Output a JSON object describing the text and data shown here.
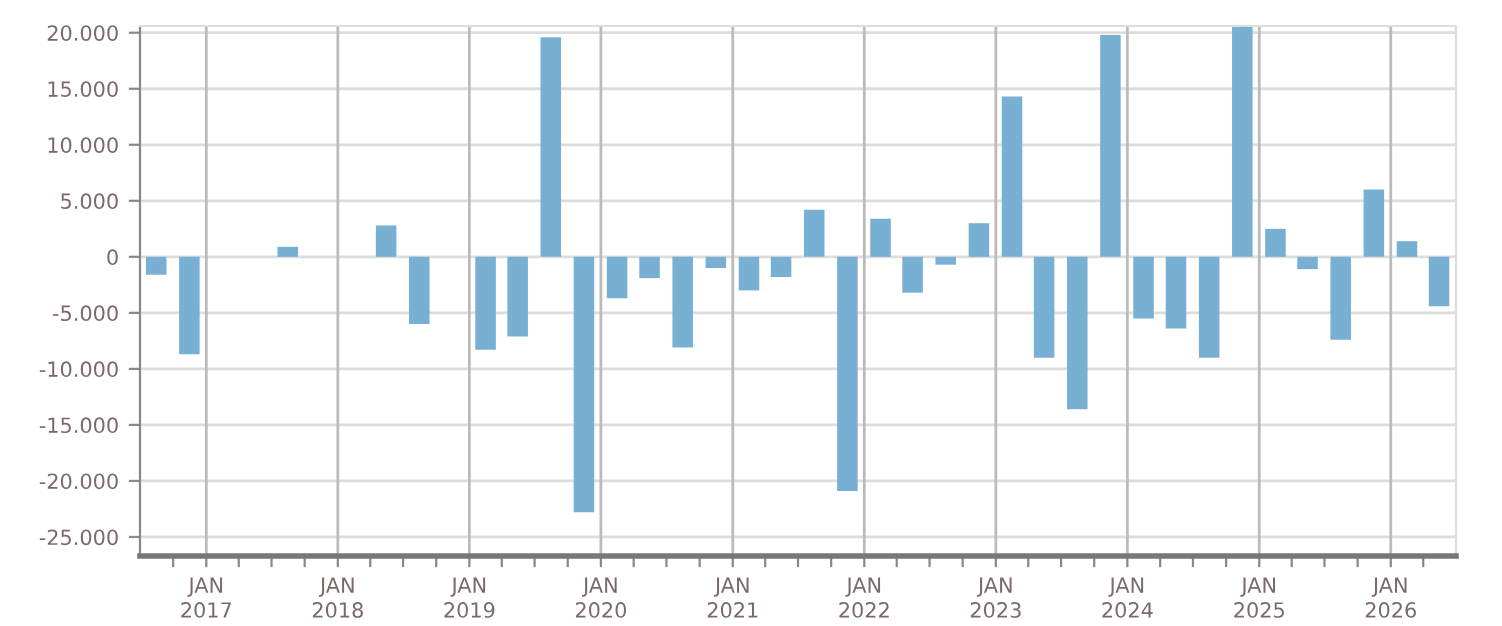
{
  "chart_data": {
    "type": "bar",
    "color": "#78b0d3",
    "x": [
      "2016-08-15",
      "2016-11-15",
      "2017-08-15",
      "2018-05-15",
      "2018-08-15",
      "2019-02-15",
      "2019-05-15",
      "2019-08-15",
      "2019-11-15",
      "2020-02-15",
      "2020-05-15",
      "2020-08-15",
      "2020-11-15",
      "2021-02-15",
      "2021-05-15",
      "2021-08-15",
      "2021-11-15",
      "2022-02-15",
      "2022-05-15",
      "2022-08-15",
      "2022-11-15",
      "2023-02-15",
      "2023-05-15",
      "2023-08-15",
      "2023-11-15",
      "2024-02-15",
      "2024-05-15",
      "2024-08-15",
      "2024-11-15",
      "2025-02-15",
      "2025-05-15",
      "2025-08-15",
      "2025-11-15",
      "2026-02-15",
      "2026-05-15"
    ],
    "values": [
      -1600,
      -8700,
      900,
      2800,
      -6000,
      -8300,
      -7100,
      19600,
      -22800,
      -3700,
      -1900,
      -8100,
      -1000,
      -3000,
      -1800,
      4200,
      -20900,
      3400,
      -3200,
      -700,
      3000,
      14300,
      -9000,
      -13600,
      19800,
      -5500,
      -6400,
      -9000,
      20500,
      2500,
      -1100,
      -7400,
      6000,
      1400,
      -4400
    ],
    "xlim": [
      "2016-07-01",
      "2026-07-01"
    ],
    "xticks": [
      {
        "value": "2016-10-01",
        "label": null
      },
      {
        "value": "2017-01-01",
        "label": "JAN\n2017"
      },
      {
        "value": "2017-04-01",
        "label": null
      },
      {
        "value": "2017-07-01",
        "label": null
      },
      {
        "value": "2017-10-01",
        "label": null
      },
      {
        "value": "2018-01-01",
        "label": "JAN\n2018"
      },
      {
        "value": "2018-04-01",
        "label": null
      },
      {
        "value": "2018-07-01",
        "label": null
      },
      {
        "value": "2018-10-01",
        "label": null
      },
      {
        "value": "2019-01-01",
        "label": "JAN\n2019"
      },
      {
        "value": "2019-04-01",
        "label": null
      },
      {
        "value": "2019-07-01",
        "label": null
      },
      {
        "value": "2019-10-01",
        "label": null
      },
      {
        "value": "2020-01-01",
        "label": "JAN\n2020"
      },
      {
        "value": "2020-04-01",
        "label": null
      },
      {
        "value": "2020-07-01",
        "label": null
      },
      {
        "value": "2020-10-01",
        "label": null
      },
      {
        "value": "2021-01-01",
        "label": "JAN\n2021"
      },
      {
        "value": "2021-04-01",
        "label": null
      },
      {
        "value": "2021-07-01",
        "label": null
      },
      {
        "value": "2021-10-01",
        "label": null
      },
      {
        "value": "2022-01-01",
        "label": "JAN\n2022"
      },
      {
        "value": "2022-04-01",
        "label": null
      },
      {
        "value": "2022-07-01",
        "label": null
      },
      {
        "value": "2022-10-01",
        "label": null
      },
      {
        "value": "2023-01-01",
        "label": "JAN\n2023"
      },
      {
        "value": "2023-04-01",
        "label": null
      },
      {
        "value": "2023-07-01",
        "label": null
      },
      {
        "value": "2023-10-01",
        "label": null
      },
      {
        "value": "2024-01-01",
        "label": "JAN\n2024"
      },
      {
        "value": "2024-04-01",
        "label": null
      },
      {
        "value": "2024-07-01",
        "label": null
      },
      {
        "value": "2024-10-01",
        "label": null
      },
      {
        "value": "2025-01-01",
        "label": "JAN\n2025"
      },
      {
        "value": "2025-04-01",
        "label": null
      },
      {
        "value": "2025-07-01",
        "label": null
      },
      {
        "value": "2025-10-01",
        "label": null
      },
      {
        "value": "2026-01-01",
        "label": "JAN\n2026"
      },
      {
        "value": "2026-04-01",
        "label": null
      }
    ],
    "ylim": [
      -26700,
      20600
    ],
    "yticks": [
      {
        "value": 20000,
        "label": "20.000"
      },
      {
        "value": 15000,
        "label": "15.000"
      },
      {
        "value": 10000,
        "label": "10.000"
      },
      {
        "value": 5000,
        "label": "5.000"
      },
      0,
      {
        "value": -5000,
        "label": "-5.000"
      },
      {
        "value": -10000,
        "label": "-10.000"
      },
      {
        "value": -15000,
        "label": "-15.000"
      },
      {
        "value": -20000,
        "label": "-20.000"
      },
      {
        "value": -25000,
        "label": "-25.000"
      }
    ],
    "grid": true
  }
}
